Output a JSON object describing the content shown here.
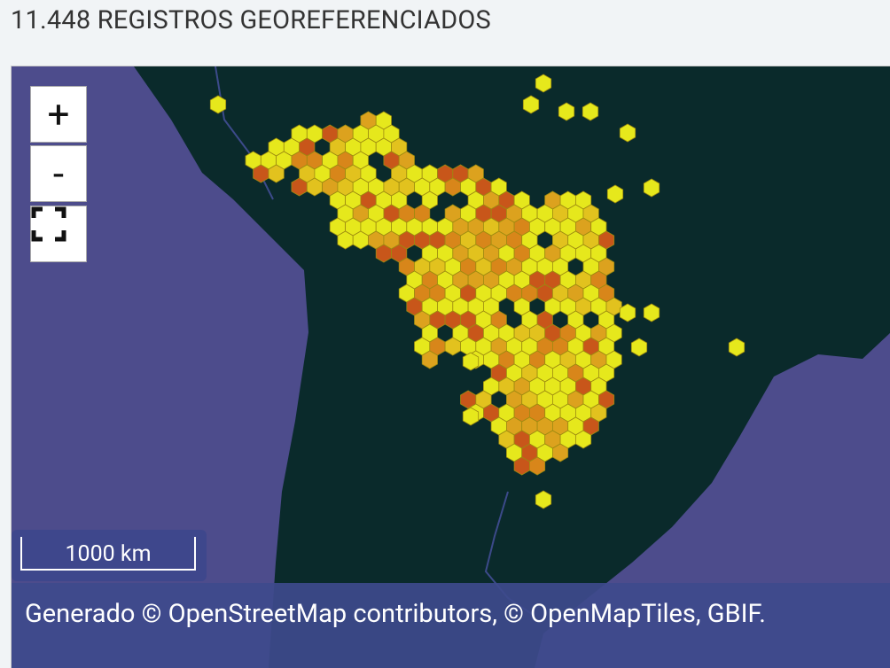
{
  "header": {
    "title": "11.448 REGISTROS GEOREFERENCIADOS"
  },
  "map": {
    "controls": {
      "zoom_in": "+",
      "zoom_out": "-"
    },
    "scale": "1000 km",
    "attribution": "Generado © OpenStreetMap contributors, © OpenMapTiles, GBIF."
  }
}
